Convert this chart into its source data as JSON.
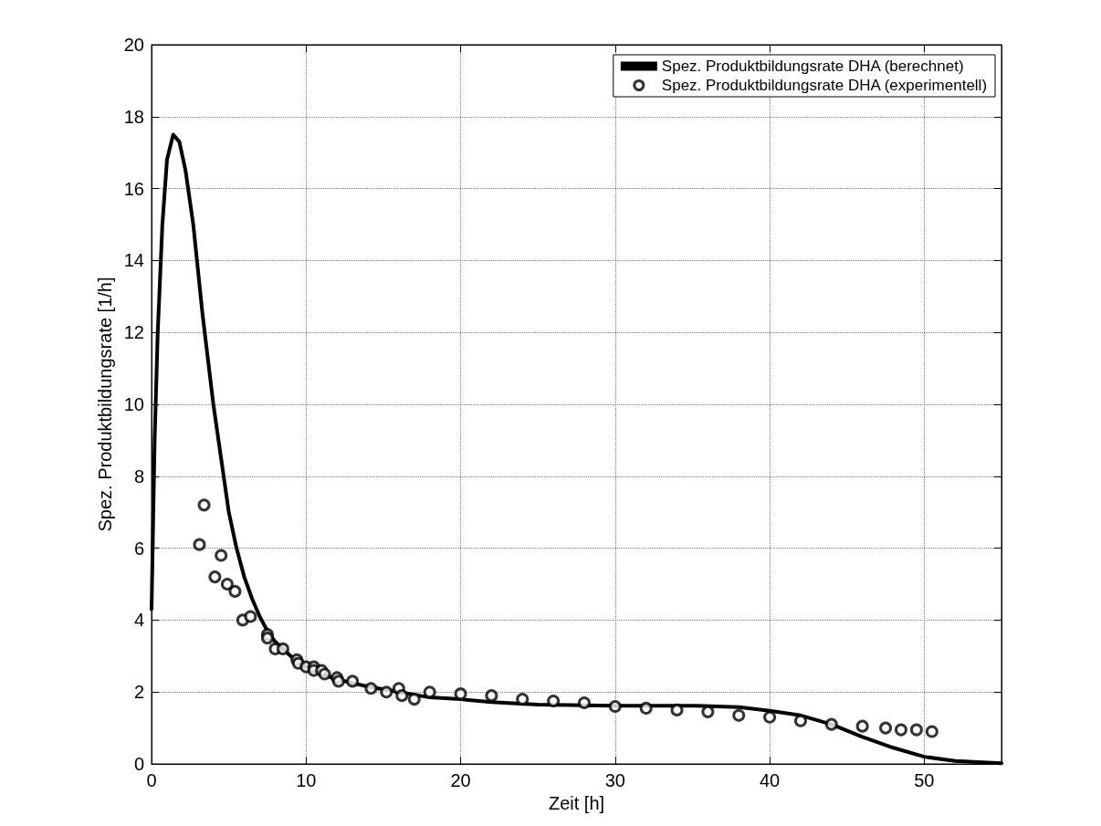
{
  "chart_data": {
    "type": "line",
    "xlabel": "Zeit [h]",
    "ylabel": "Spez. Produktbildungsrate [1/h]",
    "xlim": [
      0,
      55
    ],
    "xticks": [
      0,
      10,
      20,
      30,
      40,
      50
    ],
    "ylim": [
      0,
      20
    ],
    "yticks": [
      0,
      2,
      4,
      6,
      8,
      10,
      12,
      14,
      16,
      18,
      20
    ],
    "grid": true,
    "legend": "top right",
    "series": [
      {
        "name": "Spez. Produktbildungsrate DHA (berechnet)",
        "type": "line",
        "color": "#000000",
        "marker": "none",
        "line_style": "solid",
        "x": [
          0,
          0.2,
          0.4,
          0.7,
          1,
          1.4,
          1.8,
          2.2,
          2.7,
          3.3,
          4,
          4.5,
          5,
          5.5,
          6,
          6.5,
          7,
          7.5,
          8,
          9,
          10,
          11,
          12,
          14,
          16,
          18,
          20,
          22,
          25,
          30,
          35,
          38,
          40,
          42,
          44,
          46,
          48,
          50,
          52,
          55
        ],
        "values": [
          4.3,
          9,
          12,
          15,
          16.8,
          17.5,
          17.3,
          16.5,
          15,
          12.5,
          10,
          8.5,
          7,
          6,
          5.2,
          4.6,
          4.1,
          3.7,
          3.4,
          3.0,
          2.7,
          2.5,
          2.35,
          2.15,
          2.0,
          1.85,
          1.8,
          1.72,
          1.65,
          1.62,
          1.62,
          1.58,
          1.48,
          1.35,
          1.1,
          0.75,
          0.45,
          0.2,
          0.08,
          0.02
        ]
      },
      {
        "name": "Spez. Produktbildungsrate DHA (experimentell)",
        "type": "scatter",
        "color": "#000000",
        "marker": "circle",
        "x": [
          3.1,
          3.4,
          4.1,
          4.5,
          4.9,
          5.4,
          5.9,
          6.4,
          7.5,
          7.5,
          8.0,
          8.5,
          9.4,
          9.5,
          10.0,
          10.5,
          10.5,
          11.0,
          11.2,
          12.0,
          12.1,
          13.0,
          14.0,
          14.2,
          15.0,
          15.2,
          16.0,
          16.2,
          17.0,
          18.0,
          20.0,
          22.0,
          24,
          26,
          28,
          30,
          32,
          34,
          36,
          38,
          40,
          42,
          44,
          46,
          47.5,
          48.5,
          49.5,
          50.5
        ],
        "values": [
          6.1,
          7.2,
          5.2,
          5.8,
          5.0,
          4.8,
          4.0,
          4.1,
          3.6,
          3.5,
          3.2,
          3.2,
          2.9,
          2.8,
          2.7,
          2.7,
          2.6,
          2.6,
          2.5,
          2.4,
          2.3,
          2.3,
          null,
          2.1,
          null,
          2.0,
          2.1,
          1.9,
          1.8,
          2.0,
          1.95,
          1.9,
          1.8,
          1.75,
          1.7,
          1.6,
          1.55,
          1.5,
          1.45,
          1.35,
          1.3,
          1.2,
          1.1,
          1.05,
          1.0,
          0.95,
          0.95,
          0.9
        ]
      }
    ]
  }
}
